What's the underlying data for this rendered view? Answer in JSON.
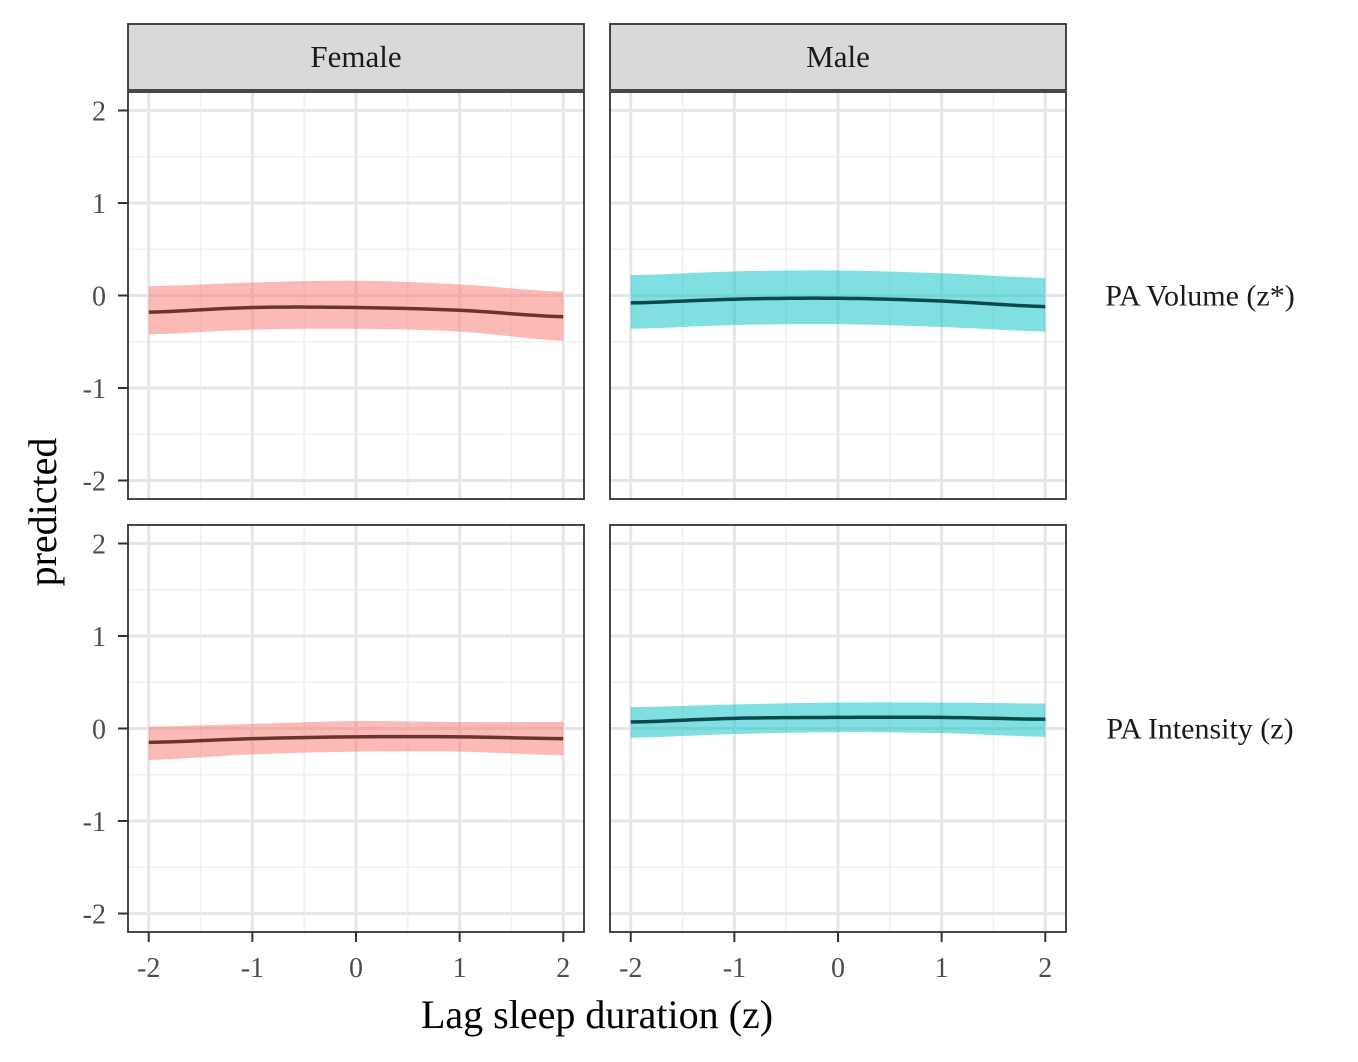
{
  "chart_data": {
    "type": "line",
    "xlabel": "Lag sleep duration (z)",
    "ylabel": "predicted",
    "xlim": [
      -2,
      2
    ],
    "ylim": [
      -2,
      2
    ],
    "xticks": [
      "-2",
      "-1",
      "0",
      "1",
      "2"
    ],
    "yticks": [
      "-2",
      "-1",
      "0",
      "1",
      "2"
    ],
    "grid": true,
    "columns": [
      "Female",
      "Male"
    ],
    "rows": [
      "PA Volume (z*)",
      "PA Intensity (z)"
    ],
    "colors": {
      "Female": {
        "band": "#F8766D",
        "line": "#6B3330"
      },
      "Male": {
        "band": "#00BFC4",
        "line": "#0B4A4C"
      }
    },
    "x": [
      -2,
      -1,
      0,
      1,
      2
    ],
    "panels": [
      {
        "column": "Female",
        "row": "PA Volume (z*)",
        "fit": [
          -0.18,
          -0.13,
          -0.13,
          -0.16,
          -0.23
        ],
        "lower": [
          -0.42,
          -0.37,
          -0.36,
          -0.39,
          -0.49
        ],
        "upper": [
          0.1,
          0.14,
          0.16,
          0.12,
          0.04
        ]
      },
      {
        "column": "Male",
        "row": "PA Volume (z*)",
        "fit": [
          -0.08,
          -0.04,
          -0.03,
          -0.06,
          -0.12
        ],
        "lower": [
          -0.36,
          -0.32,
          -0.31,
          -0.34,
          -0.39
        ],
        "upper": [
          0.22,
          0.26,
          0.27,
          0.24,
          0.19
        ]
      },
      {
        "column": "Female",
        "row": "PA Intensity (z)",
        "fit": [
          -0.15,
          -0.11,
          -0.09,
          -0.09,
          -0.11
        ],
        "lower": [
          -0.34,
          -0.28,
          -0.25,
          -0.25,
          -0.29
        ],
        "upper": [
          0.02,
          0.05,
          0.08,
          0.07,
          0.07
        ]
      },
      {
        "column": "Male",
        "row": "PA Intensity (z)",
        "fit": [
          0.07,
          0.11,
          0.12,
          0.12,
          0.1
        ],
        "lower": [
          -0.1,
          -0.06,
          -0.04,
          -0.05,
          -0.09
        ],
        "upper": [
          0.23,
          0.26,
          0.28,
          0.28,
          0.27
        ]
      }
    ]
  }
}
